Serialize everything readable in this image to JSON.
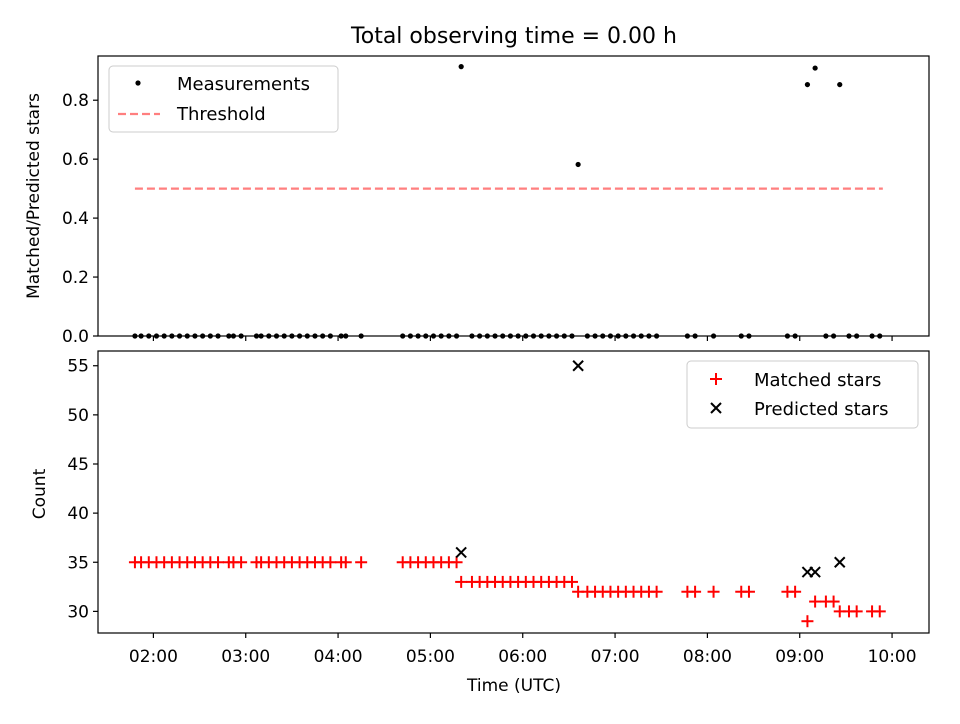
{
  "title": "Total observing time = 0.00 h",
  "colors": {
    "matched": "#ff0000",
    "predicted": "#000000",
    "threshold": "#ff7f7f",
    "measurement": "#000000"
  },
  "chart_data": [
    {
      "type": "scatter",
      "ylabel": "Matched/Predicted stars",
      "ylim": [
        0,
        0.95
      ],
      "xlim": [
        "01:24",
        "10:24"
      ],
      "yticks": [
        0.0,
        0.2,
        0.4,
        0.6,
        0.8
      ],
      "ytick_labels": [
        "0.0",
        "0.2",
        "0.4",
        "0.6",
        "0.8"
      ],
      "legend": {
        "placement": "top-left",
        "entries": [
          "Measurements",
          "Threshold"
        ]
      },
      "threshold": {
        "name": "Threshold",
        "y": 0.5,
        "x_range": [
          "01:48",
          "09:54"
        ]
      },
      "measurements": {
        "name": "Measurements",
        "x": [
          "01:48",
          "01:52",
          "01:57",
          "02:02",
          "02:07",
          "02:12",
          "02:17",
          "02:22",
          "02:27",
          "02:32",
          "02:37",
          "02:42",
          "02:49",
          "02:52",
          "02:57",
          "03:07",
          "03:10",
          "03:15",
          "03:20",
          "03:25",
          "03:30",
          "03:35",
          "03:40",
          "03:45",
          "03:50",
          "03:55",
          "04:02",
          "04:05",
          "04:15",
          "04:42",
          "04:47",
          "04:52",
          "04:57",
          "05:02",
          "05:07",
          "05:12",
          "05:17",
          "05:20",
          "05:27",
          "05:32",
          "05:37",
          "05:42",
          "05:47",
          "05:52",
          "05:57",
          "06:02",
          "06:07",
          "06:12",
          "06:17",
          "06:22",
          "06:27",
          "06:32",
          "06:36",
          "06:42",
          "06:47",
          "06:52",
          "06:57",
          "07:02",
          "07:07",
          "07:12",
          "07:17",
          "07:22",
          "07:27",
          "07:47",
          "07:52",
          "08:04",
          "08:22",
          "08:27",
          "08:52",
          "08:57",
          "09:05",
          "09:10",
          "09:17",
          "09:22",
          "09:26",
          "09:32",
          "09:37",
          "09:47",
          "09:52"
        ],
        "y": [
          0,
          0,
          0,
          0,
          0,
          0,
          0,
          0,
          0,
          0,
          0,
          0,
          0,
          0,
          0,
          0,
          0,
          0,
          0,
          0,
          0,
          0,
          0,
          0,
          0,
          0,
          0,
          0,
          0,
          0,
          0,
          0,
          0,
          0,
          0,
          0,
          0,
          0.914,
          0,
          0,
          0,
          0,
          0,
          0,
          0,
          0,
          0,
          0,
          0,
          0,
          0,
          0,
          0.582,
          0,
          0,
          0,
          0,
          0,
          0,
          0,
          0,
          0,
          0,
          0,
          0,
          0,
          0,
          0,
          0,
          0,
          0.853,
          0.909,
          0,
          0,
          0.853,
          0,
          0,
          0,
          0
        ]
      }
    },
    {
      "type": "scatter",
      "xlabel": "Time (UTC)",
      "ylabel": "Count",
      "ylim": [
        27.8,
        56.5
      ],
      "xlim": [
        "01:24",
        "10:24"
      ],
      "yticks": [
        30,
        35,
        40,
        45,
        50,
        55
      ],
      "ytick_labels": [
        "30",
        "35",
        "40",
        "45",
        "50",
        "55"
      ],
      "xticks": [
        "02:00",
        "03:00",
        "04:00",
        "05:00",
        "06:00",
        "07:00",
        "08:00",
        "09:00",
        "10:00"
      ],
      "xtick_labels": [
        "02:00",
        "03:00",
        "04:00",
        "05:00",
        "06:00",
        "07:00",
        "08:00",
        "09:00",
        "10:00"
      ],
      "legend": {
        "placement": "top-right",
        "entries": [
          "Matched stars",
          "Predicted stars"
        ]
      },
      "matched": {
        "name": "Matched stars",
        "x": [
          "01:48",
          "01:52",
          "01:57",
          "02:02",
          "02:07",
          "02:12",
          "02:17",
          "02:22",
          "02:27",
          "02:32",
          "02:37",
          "02:42",
          "02:49",
          "02:52",
          "02:57",
          "03:07",
          "03:10",
          "03:15",
          "03:20",
          "03:25",
          "03:30",
          "03:35",
          "03:40",
          "03:45",
          "03:50",
          "03:55",
          "04:02",
          "04:05",
          "04:15",
          "04:42",
          "04:47",
          "04:52",
          "04:57",
          "05:02",
          "05:07",
          "05:12",
          "05:17",
          "05:20",
          "05:27",
          "05:32",
          "05:37",
          "05:42",
          "05:47",
          "05:52",
          "05:57",
          "06:02",
          "06:07",
          "06:12",
          "06:17",
          "06:22",
          "06:27",
          "06:32",
          "06:36",
          "06:42",
          "06:47",
          "06:52",
          "06:57",
          "07:02",
          "07:07",
          "07:12",
          "07:17",
          "07:22",
          "07:27",
          "07:47",
          "07:52",
          "08:04",
          "08:22",
          "08:27",
          "08:52",
          "08:57",
          "09:05",
          "09:10",
          "09:17",
          "09:22",
          "09:26",
          "09:32",
          "09:37",
          "09:47",
          "09:52"
        ],
        "y": [
          35,
          35,
          35,
          35,
          35,
          35,
          35,
          35,
          35,
          35,
          35,
          35,
          35,
          35,
          35,
          35,
          35,
          35,
          35,
          35,
          35,
          35,
          35,
          35,
          35,
          35,
          35,
          35,
          35,
          35,
          35,
          35,
          35,
          35,
          35,
          35,
          35,
          33,
          33,
          33,
          33,
          33,
          33,
          33,
          33,
          33,
          33,
          33,
          33,
          33,
          33,
          33,
          32,
          32,
          32,
          32,
          32,
          32,
          32,
          32,
          32,
          32,
          32,
          32,
          32,
          32,
          32,
          32,
          32,
          32,
          29,
          31,
          31,
          31,
          30,
          30,
          30,
          30,
          30
        ]
      },
      "predicted": {
        "name": "Predicted stars",
        "x": [
          "05:20",
          "06:36",
          "09:05",
          "09:10",
          "09:26"
        ],
        "y": [
          36,
          55,
          34,
          34,
          35
        ]
      }
    }
  ]
}
